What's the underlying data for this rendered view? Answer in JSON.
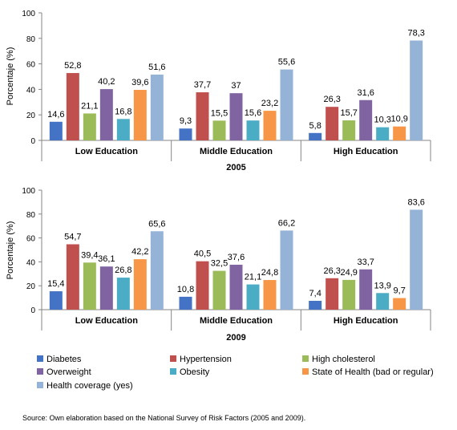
{
  "chart_data": [
    {
      "type": "bar",
      "title": "2005",
      "xlabel": "",
      "ylabel": "Porcentaje (%)",
      "ylim": [
        0,
        100
      ],
      "yticks": [
        0,
        20,
        40,
        60,
        80,
        100
      ],
      "categories": [
        "Low Education",
        "Middle Education",
        "High Education"
      ],
      "series": [
        {
          "name": "Diabetes",
          "color": "#4472c4",
          "values": [
            14.6,
            9.3,
            5.8
          ],
          "labels": [
            "14,6",
            "9,3",
            "5,8"
          ]
        },
        {
          "name": "Hypertension",
          "color": "#c0504d",
          "values": [
            52.8,
            37.7,
            26.3
          ],
          "labels": [
            "52,8",
            "37,7",
            "26,3"
          ]
        },
        {
          "name": "High cholesterol",
          "color": "#9bbb59",
          "values": [
            21.1,
            15.5,
            15.7
          ],
          "labels": [
            "21,1",
            "15,5",
            "15,7"
          ]
        },
        {
          "name": "Overweight",
          "color": "#8064a2",
          "values": [
            40.2,
            37,
            31.6
          ],
          "labels": [
            "40,2",
            "37",
            "31,6"
          ]
        },
        {
          "name": "Obesity",
          "color": "#4bacc6",
          "values": [
            16.8,
            15.6,
            10.3
          ],
          "labels": [
            "16,8",
            "15,6",
            "10,3"
          ]
        },
        {
          "name": "State of Health (bad or regular)",
          "color": "#f79646",
          "values": [
            39.6,
            23.2,
            10.9
          ],
          "labels": [
            "39,6",
            "23,2",
            "10,9"
          ]
        },
        {
          "name": "Health coverage (yes)",
          "color": "#95b3d7",
          "values": [
            51.6,
            55.6,
            78.3
          ],
          "labels": [
            "51,6",
            "55,6",
            "78,3"
          ]
        }
      ]
    },
    {
      "type": "bar",
      "title": "2009",
      "xlabel": "",
      "ylabel": "Porcentaje (%)",
      "ylim": [
        0,
        100
      ],
      "yticks": [
        0,
        20,
        40,
        60,
        80,
        100
      ],
      "categories": [
        "Low Education",
        "Middle Education",
        "High Education"
      ],
      "series": [
        {
          "name": "Diabetes",
          "color": "#4472c4",
          "values": [
            15.4,
            10.8,
            7.4
          ],
          "labels": [
            "15,4",
            "10,8",
            "7,4"
          ]
        },
        {
          "name": "Hypertension",
          "color": "#c0504d",
          "values": [
            54.7,
            40.5,
            26.3
          ],
          "labels": [
            "54,7",
            "40,5",
            "26,3"
          ]
        },
        {
          "name": "High cholesterol",
          "color": "#9bbb59",
          "values": [
            39.4,
            32.5,
            24.9
          ],
          "labels": [
            "39,4",
            "32,5",
            "24,9"
          ]
        },
        {
          "name": "Overweight",
          "color": "#8064a2",
          "values": [
            36.1,
            37.6,
            33.7
          ],
          "labels": [
            "36,1",
            "37,6",
            "33,7"
          ]
        },
        {
          "name": "Obesity",
          "color": "#4bacc6",
          "values": [
            26.8,
            21.1,
            13.9
          ],
          "labels": [
            "26,8",
            "21,1",
            "13,9"
          ]
        },
        {
          "name": "State of Health (bad or regular)",
          "color": "#f79646",
          "values": [
            42.2,
            24.8,
            9.7
          ],
          "labels": [
            "42,2",
            "24,8",
            "9,7"
          ]
        },
        {
          "name": "Health coverage (yes)",
          "color": "#95b3d7",
          "values": [
            65.6,
            66.2,
            83.6
          ],
          "labels": [
            "65,6",
            "66,2",
            "83,6"
          ]
        }
      ]
    }
  ],
  "legend": {
    "placement": "bottom",
    "items": [
      {
        "name": "Diabetes",
        "color": "#4472c4"
      },
      {
        "name": "Hypertension",
        "color": "#c0504d"
      },
      {
        "name": "High cholesterol",
        "color": "#9bbb59"
      },
      {
        "name": "Overweight",
        "color": "#8064a2"
      },
      {
        "name": "Obesity",
        "color": "#4bacc6"
      },
      {
        "name": "State of Health (bad or regular)",
        "color": "#f79646"
      },
      {
        "name": "Health coverage (yes)",
        "color": "#95b3d7"
      }
    ]
  },
  "source": "Source: Own elaboration based on the National Survey of Risk Factors (2005 and 2009)."
}
